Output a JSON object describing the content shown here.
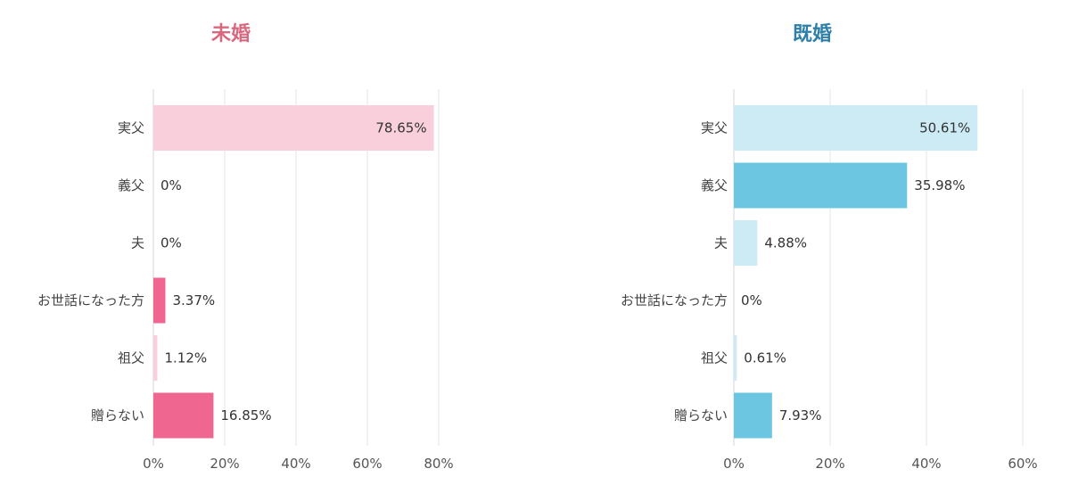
{
  "chart_data": [
    {
      "type": "bar",
      "orientation": "horizontal",
      "title": "未婚",
      "title_color": "#d9687f",
      "categories": [
        "実父",
        "義父",
        "夫",
        "お世話になった方",
        "祖父",
        "贈らない"
      ],
      "values": [
        78.65,
        0,
        0,
        3.37,
        1.12,
        16.85
      ],
      "value_labels": [
        "78.65%",
        "0%",
        "0%",
        "3.37%",
        "1.12%",
        "16.85%"
      ],
      "bar_colors": [
        "#f9cfdc",
        "#f9cfdc",
        "#f9cfdc",
        "#ef6690",
        "#f9cfdc",
        "#ef6690"
      ],
      "xlim": [
        0,
        80
      ],
      "x_ticks": [
        "0%",
        "20%",
        "40%",
        "60%",
        "80%"
      ],
      "grid": true
    },
    {
      "type": "bar",
      "orientation": "horizontal",
      "title": "既婚",
      "title_color": "#2d7fa8",
      "categories": [
        "実父",
        "義父",
        "夫",
        "お世話になった方",
        "祖父",
        "贈らない"
      ],
      "values": [
        50.61,
        35.98,
        4.88,
        0,
        0.61,
        7.93
      ],
      "value_labels": [
        "50.61%",
        "35.98%",
        "4.88%",
        "0%",
        "0.61%",
        "7.93%"
      ],
      "bar_colors": [
        "#cdebf5",
        "#6cc6e2",
        "#cdebf5",
        "#cdebf5",
        "#cdebf5",
        "#6cc6e2"
      ],
      "xlim": [
        0,
        60
      ],
      "x_ticks": [
        "0%",
        "20%",
        "40%",
        "60%"
      ],
      "grid": true
    }
  ]
}
